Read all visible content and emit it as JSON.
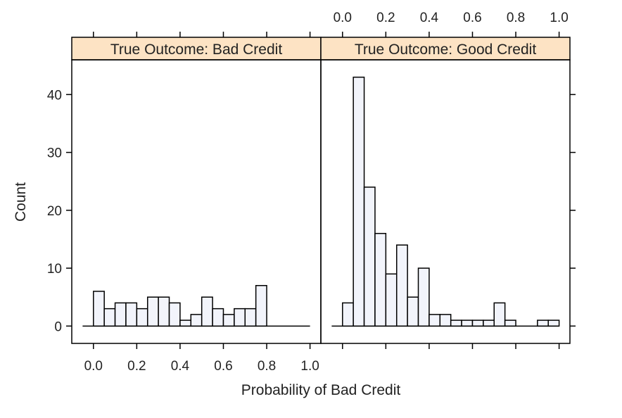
{
  "colors": {
    "strip_fill": "#fde3c4",
    "bar_fill": "#f2f4fb",
    "stroke": "#000000",
    "text": "#222222"
  },
  "chart_data": {
    "type": "bar",
    "xlabel": "Probability of Bad Credit",
    "ylabel": "Count",
    "xlim": [
      -0.1,
      1.05
    ],
    "ylim": [
      -3,
      46
    ],
    "x_ticks": [
      0.0,
      0.2,
      0.4,
      0.6,
      0.8,
      1.0
    ],
    "x_tick_labels": [
      "0.0",
      "0.2",
      "0.4",
      "0.6",
      "0.8",
      "1.0"
    ],
    "y_ticks": [
      0,
      10,
      20,
      30,
      40
    ],
    "y_tick_labels": [
      "0",
      "10",
      "20",
      "30",
      "40"
    ],
    "bin_width": 0.05,
    "bin_starts": [
      0.0,
      0.05,
      0.1,
      0.15,
      0.2,
      0.25,
      0.3,
      0.35,
      0.4,
      0.45,
      0.5,
      0.55,
      0.6,
      0.65,
      0.7,
      0.75,
      0.8,
      0.85,
      0.9,
      0.95
    ],
    "grid": false,
    "panels": [
      {
        "strip_label": "True Outcome: Bad Credit",
        "values": [
          6,
          3,
          4,
          4,
          3,
          5,
          5,
          4,
          1,
          2,
          5,
          3,
          2,
          3,
          3,
          7,
          0,
          0,
          0,
          0
        ]
      },
      {
        "strip_label": "True Outcome: Good Credit",
        "values": [
          4,
          43,
          24,
          16,
          9,
          14,
          5,
          10,
          2,
          2,
          1,
          1,
          1,
          1,
          4,
          1,
          0,
          0,
          1,
          1
        ]
      }
    ]
  }
}
